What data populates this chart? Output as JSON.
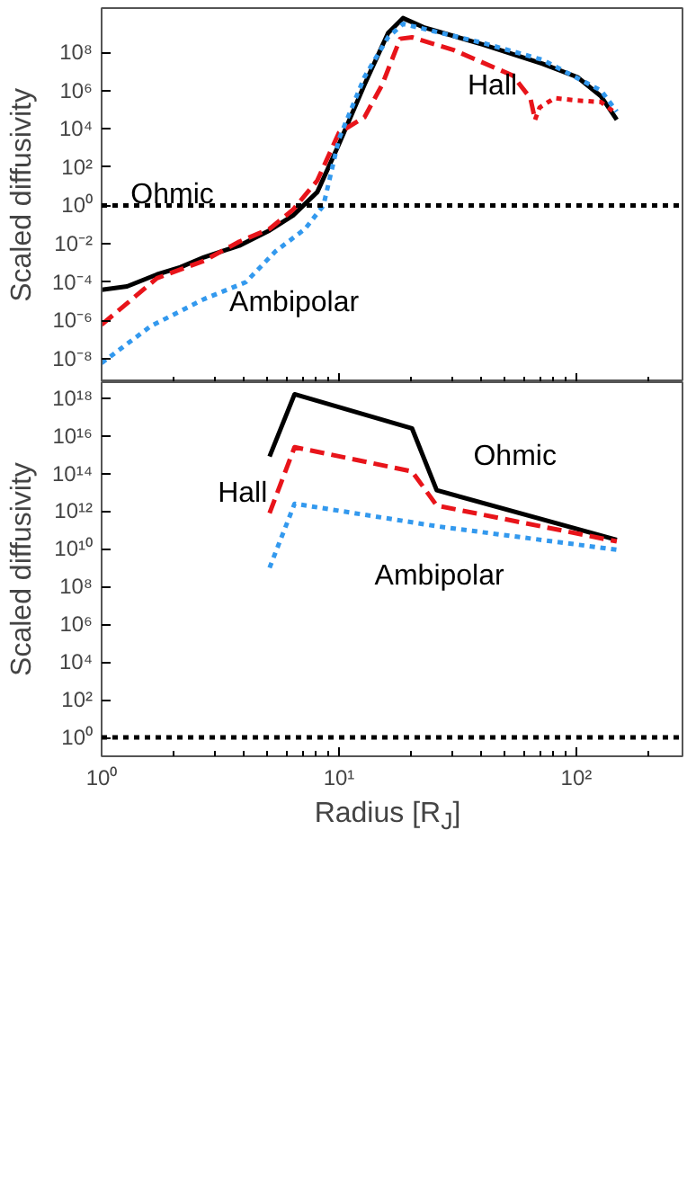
{
  "chart_data": [
    {
      "type": "line",
      "ylabel": "Scaled diffusivity",
      "log": "xy",
      "tick_labels": "y",
      "grid": false,
      "xlim": [
        1,
        280
      ],
      "ylim": [
        6e-10,
        20000000000.0
      ],
      "yticks": [
        {
          "value": 1e-08,
          "label": "10⁻⁸"
        },
        {
          "value": 1e-06,
          "label": "10⁻⁶"
        },
        {
          "value": 0.0001,
          "label": "10⁻⁴"
        },
        {
          "value": 0.01,
          "label": "10⁻²"
        },
        {
          "value": 1,
          "label": "10⁰"
        },
        {
          "value": 100,
          "label": "10²"
        },
        {
          "value": 10000,
          "label": "10⁴"
        },
        {
          "value": 1000000.0,
          "label": "10⁶"
        },
        {
          "value": 100000000.0,
          "label": "10⁸"
        }
      ],
      "ref_lines": [
        {
          "axis": "y",
          "value": 1,
          "color": "#000000",
          "line_style": "dotted"
        }
      ],
      "series": [
        {
          "name": "Ohmic",
          "color": "#000000",
          "line_style": "solid",
          "x": [
            1,
            1.28,
            1.71,
            2.15,
            2.7,
            3.8,
            5.1,
            6.4,
            8.1,
            10,
            12.8,
            16.1,
            18.6,
            22.7,
            40.5,
            72,
            101,
            127,
            148
          ],
          "values": [
            4e-05,
            6e-05,
            0.00025,
            0.0006,
            0.002,
            0.008,
            0.05,
            0.3,
            5,
            1600,
            2000000.0,
            1000000000.0,
            6000000000.0,
            2000000000.0,
            250000000.0,
            25000000.0,
            5000000.0,
            500000.0,
            30000.0
          ]
        },
        {
          "name": "Hall",
          "color": "#e8141a",
          "line_style": "dashed",
          "x": [
            1,
            1.71,
            2.7,
            3.8,
            5.1,
            6.4,
            8.1,
            10,
            12.8,
            15.2,
            18.1,
            20.3,
            30.4,
            54,
            64,
            67
          ],
          "values": [
            6e-07,
            0.00016,
            0.0013,
            0.013,
            0.06,
            0.6,
            20,
            6300,
            40000.0,
            2000000.0,
            500000000.0,
            600000000.0,
            130000000.0,
            6000000.0,
            400000.0,
            30000.0
          ]
        },
        {
          "color": "#e8141a",
          "line_style": "dotted",
          "x": [
            67,
            70,
            81,
            101,
            127,
            148
          ],
          "values": [
            30000.0,
            130000.0,
            400000.0,
            300000.0,
            250000.0,
            60000.0
          ]
        },
        {
          "name": "Ambipolar",
          "color": "#3399ee",
          "line_style": "dotted",
          "x": [
            1,
            1.61,
            2.7,
            4.05,
            5.4,
            7.2,
            8.6,
            10,
            12.8,
            16.1,
            18.6,
            40.5,
            72,
            127,
            148
          ],
          "values": [
            6e-09,
            5e-07,
            1.3e-05,
            0.0001,
            0.004,
            0.06,
            1,
            3000,
            5000000.0,
            600000000.0,
            3000000000.0,
            300000000.0,
            40000000.0,
            1000000.0,
            80000.0
          ]
        }
      ]
    },
    {
      "type": "line",
      "xlabel": "Radius [R$_{J}$]",
      "ylabel": "Scaled diffusivity",
      "log": "xy",
      "grid": false,
      "xlim": [
        1,
        280
      ],
      "ylim": [
        0.1,
        7e+18
      ],
      "xticks": [
        {
          "value": 1,
          "label": "10⁰"
        },
        {
          "value": 10,
          "label": "10¹"
        },
        {
          "value": 100,
          "label": "10²"
        }
      ],
      "yticks": [
        {
          "value": 1,
          "label": "10⁰"
        },
        {
          "value": 100,
          "label": "10²"
        },
        {
          "value": 10000,
          "label": "10⁴"
        },
        {
          "value": 1000000.0,
          "label": "10⁶"
        },
        {
          "value": 100000000.0,
          "label": "10⁸"
        },
        {
          "value": 10000000000.0,
          "label": "10¹⁰"
        },
        {
          "value": 1000000000000.0,
          "label": "10¹²"
        },
        {
          "value": 100000000000000.0,
          "label": "10¹⁴"
        },
        {
          "value": 1e+16,
          "label": "10¹⁶"
        },
        {
          "value": 1e+18,
          "label": "10¹⁸"
        }
      ],
      "ref_lines": [
        {
          "axis": "y",
          "value": 1,
          "color": "#000000",
          "line_style": "dotted"
        }
      ],
      "series": [
        {
          "name": "Ohmic",
          "color": "#000000",
          "line_style": "solid",
          "x": [
            5.1,
            6.5,
            20.3,
            25.8,
            148
          ],
          "values": [
            800000000000000.0,
            1.6e+18,
            2.5e+16,
            13000000000000.0,
            30000000000.0
          ]
        },
        {
          "name": "Hall",
          "color": "#e8141a",
          "line_style": "dashed",
          "x": [
            5.1,
            6.5,
            20.3,
            25.8,
            148
          ],
          "values": [
            800000000000.0,
            2500000000000000.0,
            130000000000000.0,
            2000000000000.0,
            25000000000.0
          ]
        },
        {
          "name": "Ambipolar",
          "color": "#3399ee",
          "line_style": "dotted",
          "x": [
            5.1,
            6.5,
            25.8,
            148
          ],
          "values": [
            1000000000.0,
            2500000000000.0,
            160000000000.0,
            9000000000.0
          ]
        }
      ]
    }
  ]
}
